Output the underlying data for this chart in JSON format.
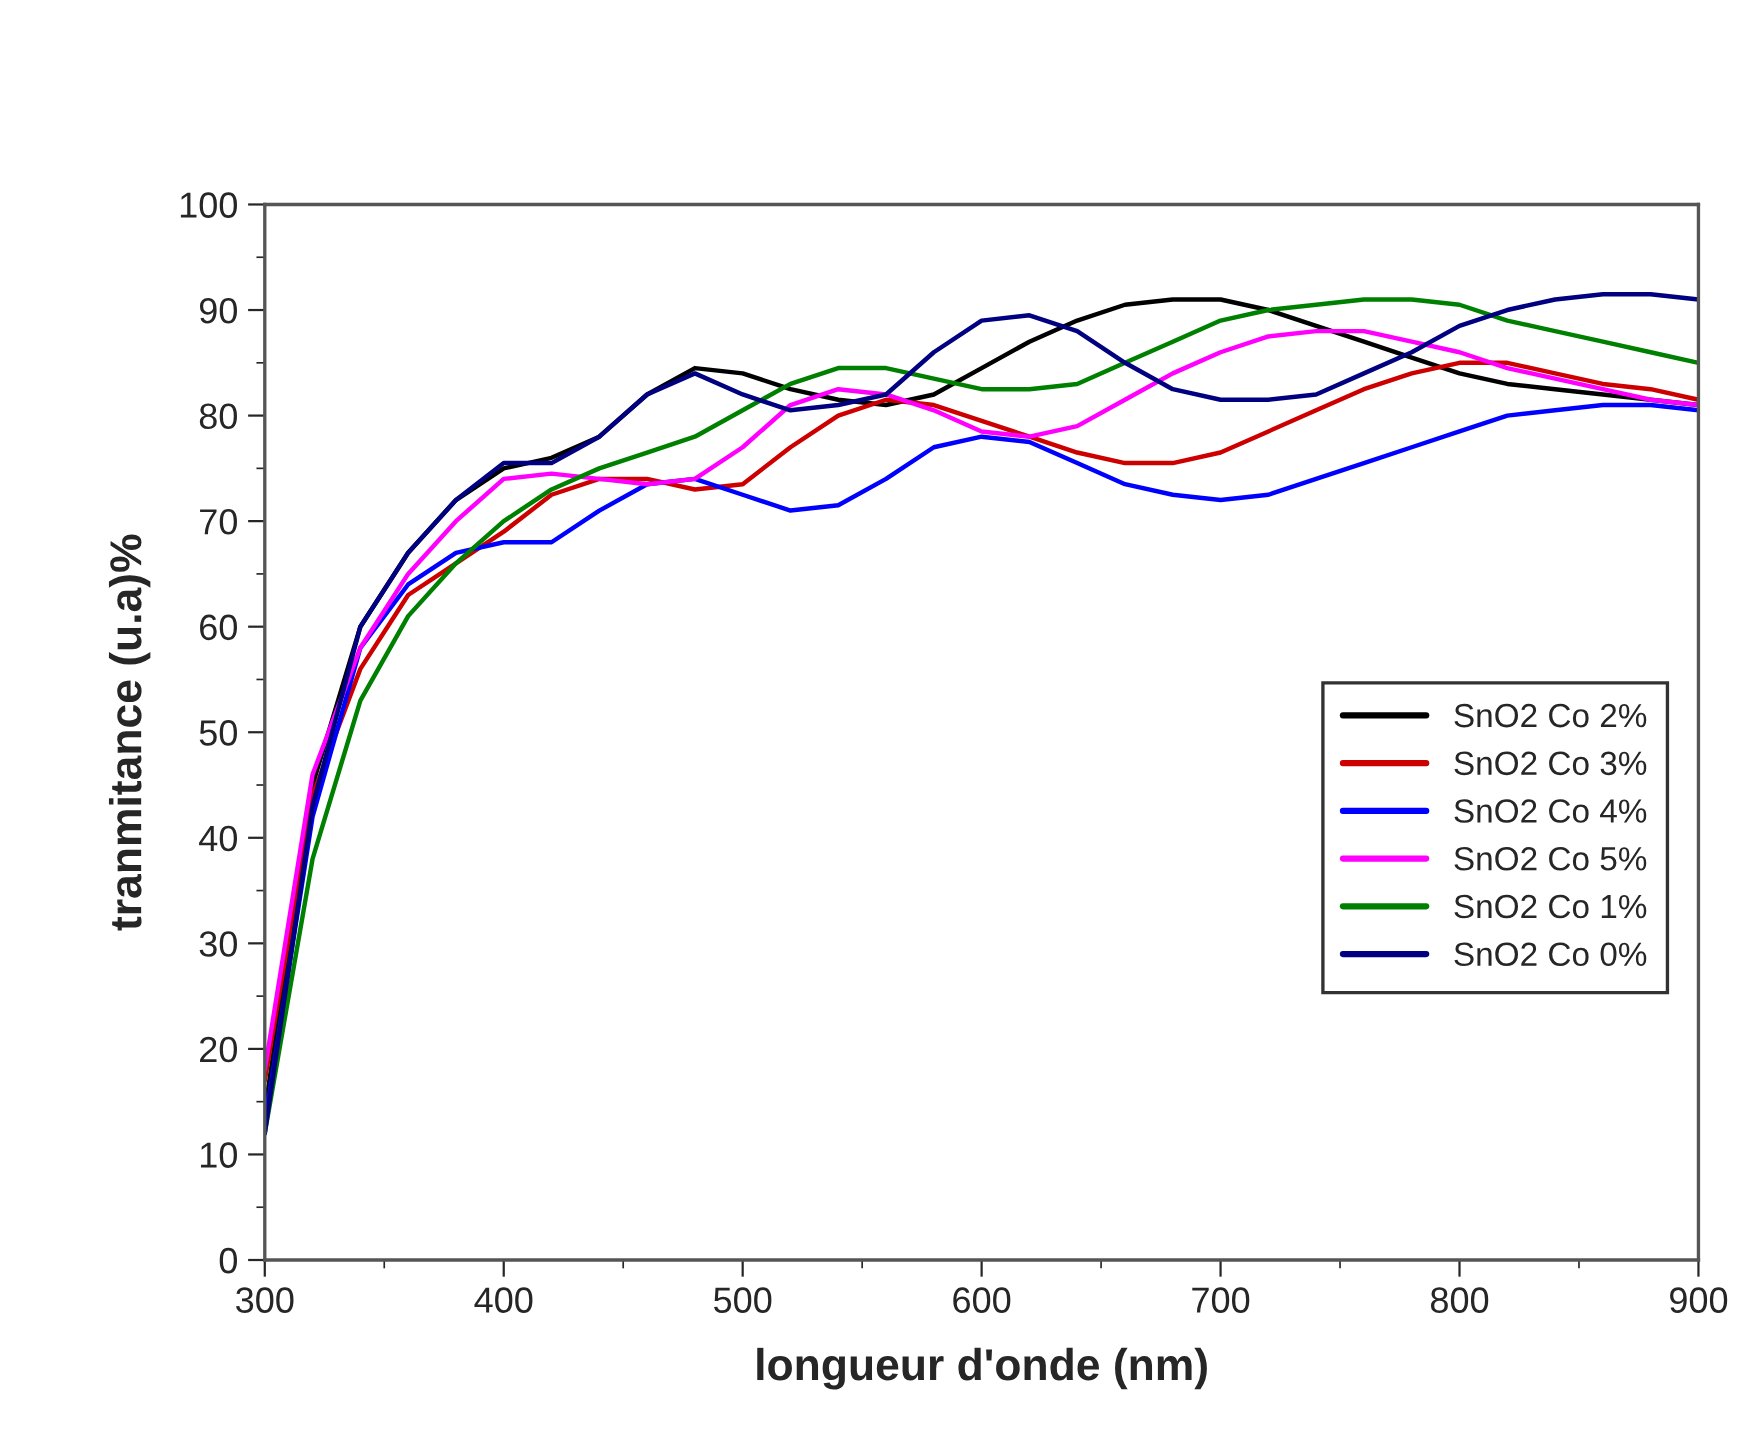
{
  "chart_data": {
    "type": "line",
    "xlabel": "longueur d'onde (nm)",
    "ylabel": "tranmitance (u.a)%",
    "x": [
      300,
      320,
      340,
      360,
      380,
      400,
      420,
      440,
      460,
      480,
      500,
      520,
      540,
      560,
      580,
      600,
      620,
      640,
      660,
      680,
      700,
      720,
      740,
      760,
      780,
      800,
      820,
      840,
      860,
      880,
      900
    ],
    "series": [
      {
        "name": "SnO2 Co 2%",
        "color": "#000000",
        "values": [
          14,
          45,
          60,
          67,
          72,
          75,
          76,
          78,
          82,
          84.5,
          84,
          82.5,
          81.5,
          81,
          82,
          84.5,
          87,
          89,
          90.5,
          91,
          91,
          90,
          88.5,
          87,
          85.5,
          84,
          83,
          82.5,
          82,
          81.5,
          81
        ]
      },
      {
        "name": "SnO2 Co 3%",
        "color": "#cc0000",
        "values": [
          17,
          44,
          56,
          63,
          66,
          69,
          72.5,
          74,
          74,
          73,
          73.5,
          77,
          80,
          81.5,
          81,
          79.5,
          78,
          76.5,
          75.5,
          75.5,
          76.5,
          78.5,
          80.5,
          82.5,
          84,
          85,
          85,
          84,
          83,
          82.5,
          81.5
        ]
      },
      {
        "name": "SnO2 Co 4%",
        "color": "#0000ff",
        "values": [
          13,
          42,
          58,
          64,
          67,
          68,
          68,
          71,
          73.5,
          74,
          72.5,
          71,
          71.5,
          74,
          77,
          78,
          77.5,
          75.5,
          73.5,
          72.5,
          72,
          72.5,
          74,
          75.5,
          77,
          78.5,
          80,
          80.5,
          81,
          81,
          80.5
        ]
      },
      {
        "name": "SnO2 Co 5%",
        "color": "#ff00ff",
        "values": [
          18,
          46,
          58,
          65,
          70,
          74,
          74.5,
          74,
          73.5,
          74,
          77,
          81,
          82.5,
          82,
          80.5,
          78.5,
          78,
          79,
          81.5,
          84,
          86,
          87.5,
          88,
          88,
          87,
          86,
          84.5,
          83.5,
          82.5,
          81.5,
          81
        ]
      },
      {
        "name": "SnO2 Co 1%",
        "color": "#008000",
        "values": [
          12,
          38,
          53,
          61,
          66,
          70,
          73,
          75,
          76.5,
          78,
          80.5,
          83,
          84.5,
          84.5,
          83.5,
          82.5,
          82.5,
          83,
          85,
          87,
          89,
          90,
          90.5,
          91,
          91,
          90.5,
          89,
          88,
          87,
          86,
          85
        ]
      },
      {
        "name": "SnO2 Co 0%",
        "color": "#000080",
        "values": [
          12,
          43,
          60,
          67,
          72,
          75.5,
          75.5,
          78,
          82,
          84,
          82,
          80.5,
          81,
          82,
          86,
          89,
          89.5,
          88,
          85,
          82.5,
          81.5,
          81.5,
          82,
          84,
          86,
          88.5,
          90,
          91,
          91.5,
          91.5,
          91
        ]
      }
    ],
    "xlim": [
      300,
      900
    ],
    "xticks": [
      300,
      400,
      500,
      600,
      700,
      800,
      900
    ],
    "ylim": [
      0,
      100
    ],
    "yticks": [
      0,
      10,
      20,
      30,
      40,
      50,
      60,
      70,
      80,
      90,
      100
    ],
    "legend": "right",
    "grid": false,
    "marker": "none",
    "line_style": "solid"
  }
}
